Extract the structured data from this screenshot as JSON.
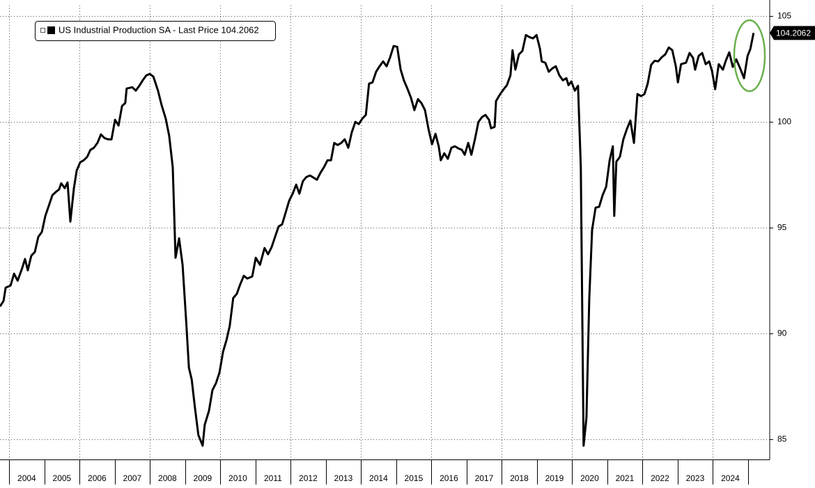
{
  "chart_data": {
    "type": "line",
    "xlim": [
      2003.74,
      2025.62
    ],
    "xticks": [
      2004,
      2005,
      2006,
      2007,
      2008,
      2009,
      2010,
      2011,
      2012,
      2013,
      2014,
      2015,
      2016,
      2017,
      2018,
      2019,
      2020,
      2021,
      2022,
      2023,
      2024
    ],
    "ylim": [
      84.05,
      105.5
    ],
    "yticks": [
      85,
      90,
      95,
      100,
      105
    ],
    "grid": true,
    "last_price_label": "- Last Price",
    "x": [
      2003.74,
      2003.84,
      2003.9,
      2004.04,
      2004.14,
      2004.24,
      2004.37,
      2004.45,
      2004.53,
      2004.63,
      2004.73,
      2004.83,
      2004.93,
      2005.03,
      2005.13,
      2005.23,
      2005.32,
      2005.42,
      2005.48,
      2005.58,
      2005.66,
      2005.74,
      2005.84,
      2005.92,
      2006.02,
      2006.12,
      2006.22,
      2006.31,
      2006.41,
      2006.51,
      2006.61,
      2006.71,
      2006.81,
      2006.91,
      2007.01,
      2007.11,
      2007.21,
      2007.3,
      2007.34,
      2007.5,
      2007.6,
      2007.7,
      2007.8,
      2007.9,
      2008.0,
      2008.1,
      2008.23,
      2008.33,
      2008.45,
      2008.55,
      2008.65,
      2008.73,
      2008.83,
      2008.93,
      2009.03,
      2009.11,
      2009.19,
      2009.28,
      2009.38,
      2009.5,
      2009.56,
      2009.68,
      2009.78,
      2009.88,
      2009.98,
      2010.08,
      2010.18,
      2010.27,
      2010.37,
      2010.47,
      2010.57,
      2010.67,
      2010.77,
      2010.91,
      2011.01,
      2011.13,
      2011.26,
      2011.36,
      2011.46,
      2011.56,
      2011.66,
      2011.76,
      2011.86,
      2011.96,
      2012.06,
      2012.16,
      2012.25,
      2012.35,
      2012.45,
      2012.55,
      2012.65,
      2012.75,
      2012.85,
      2012.95,
      2013.05,
      2013.15,
      2013.24,
      2013.34,
      2013.44,
      2013.54,
      2013.64,
      2013.74,
      2013.84,
      2013.94,
      2014.04,
      2014.14,
      2014.23,
      2014.33,
      2014.43,
      2014.53,
      2014.63,
      2014.73,
      2014.83,
      2014.93,
      2015.03,
      2015.13,
      2015.22,
      2015.32,
      2015.42,
      2015.52,
      2015.62,
      2015.72,
      2015.82,
      2015.92,
      2016.02,
      2016.12,
      2016.21,
      2016.27,
      2016.37,
      2016.47,
      2016.57,
      2016.67,
      2016.77,
      2016.87,
      2016.95,
      2017.05,
      2017.14,
      2017.24,
      2017.34,
      2017.44,
      2017.54,
      2017.64,
      2017.7,
      2017.8,
      2017.84,
      2017.96,
      2018.06,
      2018.15,
      2018.25,
      2018.31,
      2018.39,
      2018.49,
      2018.59,
      2018.69,
      2018.79,
      2018.89,
      2018.99,
      2019.09,
      2019.14,
      2019.24,
      2019.34,
      2019.44,
      2019.54,
      2019.64,
      2019.74,
      2019.84,
      2019.9,
      2019.98,
      2020.08,
      2020.17,
      2020.25,
      2020.33,
      2020.41,
      2020.49,
      2020.57,
      2020.67,
      2020.77,
      2020.87,
      2020.97,
      2021.07,
      2021.16,
      2021.2,
      2021.26,
      2021.36,
      2021.46,
      2021.56,
      2021.66,
      2021.76,
      2021.86,
      2021.96,
      2022.06,
      2022.15,
      2022.25,
      2022.35,
      2022.45,
      2022.55,
      2022.65,
      2022.75,
      2022.85,
      2022.95,
      2023.01,
      2023.1,
      2023.24,
      2023.34,
      2023.44,
      2023.5,
      2023.6,
      2023.7,
      2023.8,
      2023.9,
      2023.98,
      2024.07,
      2024.17,
      2024.29,
      2024.37,
      2024.47,
      2024.57,
      2024.67,
      2024.77,
      2024.89,
      2024.99,
      2025.07,
      2025.16
    ],
    "series": [
      {
        "name": "US Industrial Production SA",
        "color": "#000000",
        "values": [
          91.28,
          91.54,
          92.17,
          92.27,
          92.83,
          92.5,
          93.09,
          93.52,
          92.99,
          93.68,
          93.85,
          94.57,
          94.8,
          95.56,
          96.05,
          96.54,
          96.68,
          96.81,
          97.1,
          96.87,
          97.14,
          95.29,
          96.87,
          97.7,
          98.09,
          98.19,
          98.35,
          98.68,
          98.78,
          99.01,
          99.41,
          99.24,
          99.18,
          99.18,
          100.1,
          99.83,
          100.76,
          100.89,
          101.58,
          101.64,
          101.48,
          101.71,
          101.97,
          102.2,
          102.27,
          102.14,
          101.48,
          100.82,
          100.16,
          99.34,
          97.86,
          93.58,
          94.5,
          93.25,
          90.62,
          88.39,
          87.83,
          86.51,
          85.2,
          84.7,
          85.69,
          86.35,
          87.33,
          87.66,
          88.16,
          89.14,
          89.7,
          90.36,
          91.68,
          91.87,
          92.33,
          92.73,
          92.6,
          92.7,
          93.58,
          93.25,
          94.04,
          93.75,
          94.08,
          94.57,
          95.06,
          95.16,
          95.72,
          96.28,
          96.61,
          97.04,
          96.61,
          97.2,
          97.4,
          97.47,
          97.37,
          97.27,
          97.6,
          97.86,
          98.19,
          98.19,
          99.01,
          98.91,
          99.01,
          99.18,
          98.78,
          99.51,
          100.0,
          99.9,
          100.16,
          100.33,
          101.81,
          101.87,
          102.37,
          102.63,
          102.86,
          102.63,
          103.06,
          103.59,
          103.55,
          102.47,
          101.97,
          101.58,
          101.15,
          100.56,
          101.08,
          100.89,
          100.56,
          99.67,
          98.95,
          99.44,
          98.85,
          98.19,
          98.52,
          98.26,
          98.78,
          98.85,
          98.75,
          98.68,
          98.45,
          99.01,
          98.45,
          99.18,
          100.0,
          100.23,
          100.33,
          100.1,
          99.7,
          99.77,
          100.99,
          101.32,
          101.55,
          101.74,
          102.2,
          103.39,
          102.47,
          103.19,
          103.36,
          104.11,
          104.01,
          103.95,
          104.11,
          103.45,
          102.86,
          102.8,
          102.37,
          102.53,
          102.63,
          102.2,
          101.97,
          102.07,
          101.74,
          101.91,
          101.48,
          101.71,
          97.86,
          84.7,
          86.02,
          91.61,
          94.9,
          95.95,
          95.99,
          96.54,
          96.94,
          98.19,
          98.85,
          95.56,
          98.12,
          98.35,
          99.18,
          99.67,
          100.07,
          99.01,
          101.32,
          101.22,
          101.32,
          101.81,
          102.7,
          102.89,
          102.86,
          103.06,
          103.19,
          103.52,
          103.39,
          102.63,
          101.87,
          102.73,
          102.8,
          103.26,
          103.03,
          102.47,
          103.12,
          103.26,
          102.73,
          102.86,
          102.4,
          101.55,
          102.73,
          102.47,
          102.89,
          103.29,
          102.6,
          102.96,
          102.57,
          102.07,
          103.12,
          103.45,
          104.2062
        ]
      }
    ]
  }
}
